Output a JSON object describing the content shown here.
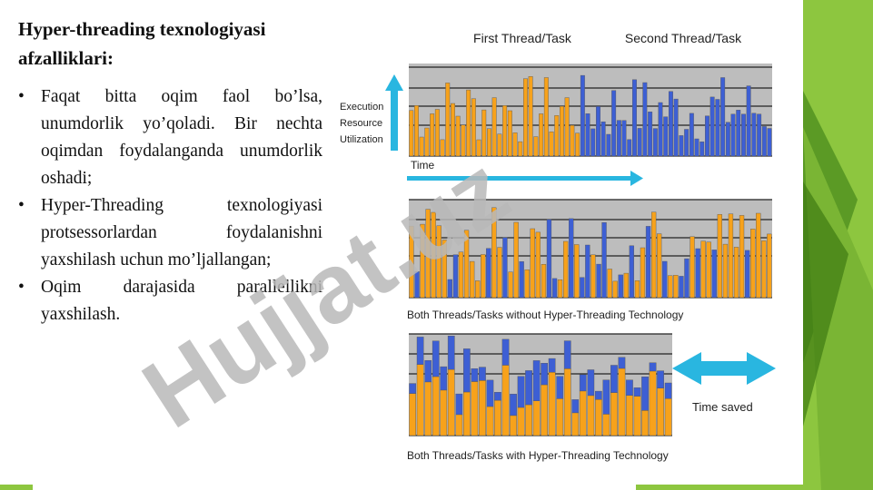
{
  "slide": {
    "title": "Hyper-threading texnologiyasi afzalliklari:",
    "bullets": [
      "Faqat bitta oqim faol bo’lsa, unumdorlik yo’qoladi. Bir nechta oqimdan foydalanganda unumdorlik oshadi;",
      "Hyper-Threading texnologiyasi protsessorlardan foydalanishni yaxshilash uchun mo’ljallangan;",
      "Oqim darajasida parallellikni yaxshilash."
    ]
  },
  "figure": {
    "header_first": "First Thread/Task",
    "header_second": "Second Thread/Task",
    "y_label_lines": [
      "Execution",
      "Resource",
      "Utilization"
    ],
    "time_label": "Time",
    "caption_without_ht": "Both Threads/Tasks without Hyper-Threading Technology",
    "caption_with_ht": "Both Threads/Tasks with Hyper-Threading Technology",
    "time_saved_label": "Time saved"
  },
  "watermark": {
    "text": "Hujjat.uz"
  },
  "colors": {
    "thread_one": "#f7a21b",
    "thread_two": "#3d5fd4",
    "arrow_cyan": "#29b6e0",
    "theme_green": "#8dc63f",
    "chart_bg": "#bdbdbd",
    "watermark": "#b9b9b9",
    "watermark_accent": "#c9a7f0"
  }
}
